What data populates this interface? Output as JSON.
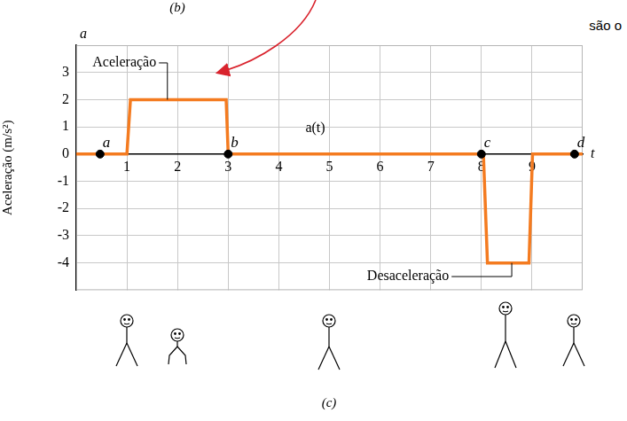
{
  "chart_data": {
    "type": "line",
    "header": "(b)",
    "corner_text": "são o",
    "caption": "(c)",
    "y_label": "Aceleração (m/s²)",
    "y_symbol": "a",
    "x_symbol": "t",
    "series": [
      {
        "color": "#f47b20",
        "x": [
          0,
          1,
          1.07,
          2.96,
          3,
          8.04,
          8.12,
          8.94,
          9.01,
          10
        ],
        "values": [
          0,
          0,
          2,
          2,
          0,
          0,
          -4,
          -4,
          0,
          0
        ]
      }
    ],
    "points": {
      "labels": [
        "a",
        "b",
        "c",
        "d"
      ],
      "x": [
        0.47,
        3,
        8,
        9.84
      ],
      "y": [
        0,
        0,
        0,
        0
      ],
      "color": "#000000",
      "marker": "circle"
    },
    "annotations": [
      {
        "text": "a(t)",
        "x": 4.72,
        "y": 0.95
      },
      {
        "text": "Aceleração",
        "x": 0.95,
        "y": 3.35,
        "arrow_to": [
          1.8,
          2
        ]
      },
      {
        "text": "Desaceleração",
        "x": 6.55,
        "y": -4.5,
        "arrow_to": [
          8.6,
          -4
        ]
      }
    ],
    "xlim": [
      0,
      10
    ],
    "xticks": [
      1,
      2,
      3,
      4,
      5,
      6,
      7,
      8,
      9
    ],
    "ylim": [
      -5,
      4
    ],
    "yticks": [
      -4,
      -3,
      -2,
      -1,
      0,
      1,
      2,
      3
    ],
    "grid": true
  }
}
